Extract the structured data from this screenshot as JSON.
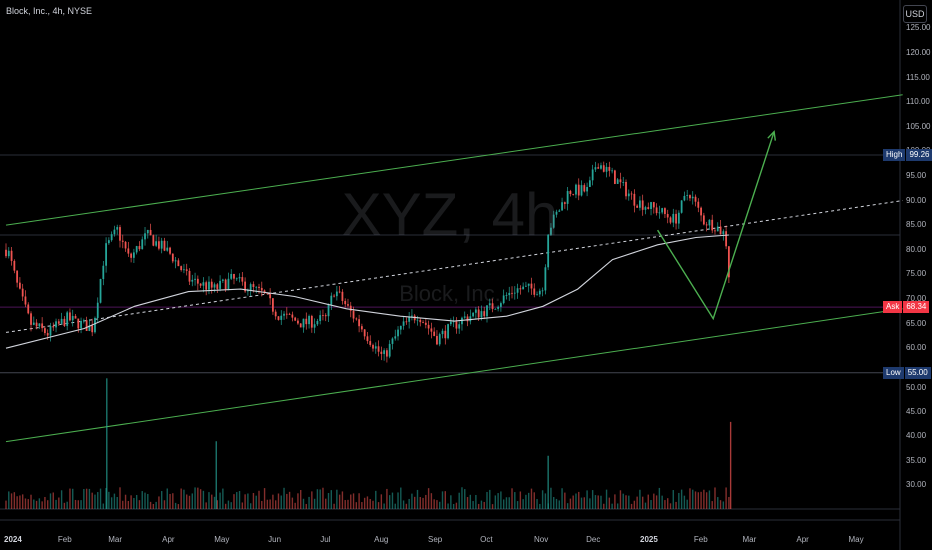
{
  "header": {
    "title": "Block, Inc., 4h, NYSE",
    "currency": "USD"
  },
  "watermark": {
    "symbol": "XYZ, 4h",
    "company": "Block, Inc."
  },
  "price_axis": [
    "125.00",
    "120.00",
    "115.00",
    "110.00",
    "105.00",
    "100.00",
    "95.00",
    "90.00",
    "85.00",
    "80.00",
    "75.00",
    "70.00",
    "65.00",
    "60.00",
    "55.00"
  ],
  "volume_axis": [
    "50.00",
    "45.00",
    "40.00",
    "35.00",
    "30.00"
  ],
  "time_axis": [
    "2024",
    "Feb",
    "Mar",
    "Apr",
    "May",
    "Jun",
    "Jul",
    "Aug",
    "Sep",
    "Oct",
    "Nov",
    "Dec",
    "2025",
    "Feb",
    "Mar",
    "Apr",
    "May"
  ],
  "markers": {
    "high": {
      "label": "High",
      "value": "99.26"
    },
    "ask": {
      "label": "Ask",
      "value": "68.34"
    },
    "low": {
      "label": "Low",
      "value": "55.00"
    }
  },
  "colors": {
    "up": "#26a69a",
    "down": "#ef5350",
    "channel": "#4caf50",
    "ma": "#d1d4dc",
    "ask": "#f23645",
    "label_bg": "#1e3a6e"
  },
  "chart_data": {
    "type": "candlestick",
    "title": "Block, Inc., 4h, NYSE",
    "price_range": [
      52,
      129
    ],
    "volume_range": [
      25,
      52
    ],
    "anchors": [
      [
        "2024-01-02",
        80
      ],
      [
        "2024-01-08",
        72
      ],
      [
        "2024-01-15",
        65
      ],
      [
        "2024-01-25",
        63
      ],
      [
        "2024-02-05",
        66
      ],
      [
        "2024-02-20",
        64
      ],
      [
        "2024-02-27",
        80
      ],
      [
        "2024-03-05",
        84
      ],
      [
        "2024-03-12",
        78
      ],
      [
        "2024-03-22",
        83
      ],
      [
        "2024-04-05",
        79
      ],
      [
        "2024-04-15",
        74
      ],
      [
        "2024-04-30",
        72
      ],
      [
        "2024-05-10",
        74
      ],
      [
        "2024-05-28",
        71
      ],
      [
        "2024-06-05",
        67
      ],
      [
        "2024-06-20",
        65
      ],
      [
        "2024-07-03",
        66
      ],
      [
        "2024-07-08",
        72
      ],
      [
        "2024-07-22",
        65
      ],
      [
        "2024-08-05",
        58
      ],
      [
        "2024-08-15",
        64
      ],
      [
        "2024-08-25",
        67
      ],
      [
        "2024-09-05",
        62
      ],
      [
        "2024-09-20",
        66
      ],
      [
        "2024-10-05",
        68
      ],
      [
        "2024-10-20",
        72
      ],
      [
        "2024-11-05",
        72
      ],
      [
        "2024-11-08",
        84
      ],
      [
        "2024-11-20",
        92
      ],
      [
        "2024-12-01",
        92
      ],
      [
        "2024-12-06",
        98
      ],
      [
        "2024-12-15",
        95
      ],
      [
        "2024-12-28",
        90
      ],
      [
        "2025-01-10",
        88
      ],
      [
        "2025-01-20",
        86
      ],
      [
        "2025-01-28",
        92
      ],
      [
        "2025-02-05",
        86
      ],
      [
        "2025-02-12",
        85
      ],
      [
        "2025-02-18",
        83
      ],
      [
        "2025-02-20",
        75
      ],
      [
        "2025-02-21",
        68
      ]
    ],
    "moving_average": [
      [
        "2024-01-01",
        60
      ],
      [
        "2024-02-15",
        64
      ],
      [
        "2024-03-15",
        68.5
      ],
      [
        "2024-04-15",
        71.5
      ],
      [
        "2024-05-15",
        72
      ],
      [
        "2024-06-15",
        70.5
      ],
      [
        "2024-07-15",
        68
      ],
      [
        "2024-08-15",
        66.5
      ],
      [
        "2024-09-15",
        65.5
      ],
      [
        "2024-10-15",
        66.5
      ],
      [
        "2024-11-05",
        68.5
      ],
      [
        "2024-11-25",
        72
      ],
      [
        "2024-12-15",
        78
      ],
      [
        "2025-01-10",
        81
      ],
      [
        "2025-02-01",
        82.5
      ],
      [
        "2025-02-20",
        83
      ]
    ],
    "channel_upper": [
      [
        "2024-01-01",
        85
      ],
      [
        "2025-05-31",
        111.5
      ]
    ],
    "channel_lower": [
      [
        "2024-01-01",
        41
      ],
      [
        "2025-05-31",
        68
      ]
    ],
    "channel_mid": [
      [
        "2024-01-01",
        63.2
      ],
      [
        "2025-05-31",
        90
      ]
    ],
    "projection": [
      [
        "2025-01-10",
        84
      ],
      [
        "2025-02-11",
        66
      ],
      [
        "2025-03-18",
        104
      ]
    ],
    "volume_spikes": [
      [
        "2024-02-28",
        52
      ],
      [
        "2024-05-01",
        39
      ],
      [
        "2024-11-08",
        36
      ],
      [
        "2025-02-21",
        43
      ]
    ]
  }
}
